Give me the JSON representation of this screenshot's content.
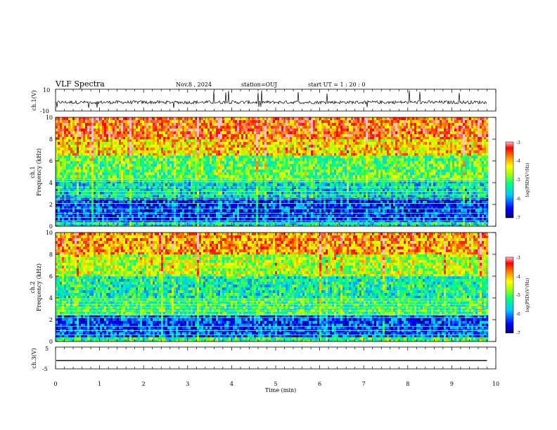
{
  "header": {
    "title": "VLF Spectra",
    "date": "Nov.8  , 2024",
    "station": "station=OUJ",
    "start": "start  UT =   1 : 20 : 0"
  },
  "chart_data": [
    {
      "type": "line",
      "panel": "ch1-waveform",
      "ylabel": "ch.1(V)",
      "ylim": [
        -10,
        10
      ],
      "yticks": [
        "10",
        "-10"
      ],
      "xlim": [
        0,
        10
      ],
      "color": "#000000",
      "description_of_series": "noisy waveform centered near -2 V with sporadic spikes to about -8 V and +8 V"
    },
    {
      "type": "heatmap",
      "panel": "ch1-spectrogram",
      "ylabel": "ch.1\nFrequency  (kHz)",
      "ylim": [
        0,
        10
      ],
      "yticks": [
        "0",
        "2",
        "4",
        "6",
        "8",
        "10"
      ],
      "xlim": [
        0,
        10
      ],
      "data_end_min": 9.8,
      "colorbar": {
        "label": "log(PSD)(V²/Hz)",
        "range": [
          -7,
          -3
        ],
        "ticks": [
          "-3",
          "-4",
          "-5",
          "-6",
          "-7"
        ],
        "colors": [
          "#000080",
          "#0000ff",
          "#00c8ff",
          "#00ff7f",
          "#aaff00",
          "#ffff00",
          "#ff8800",
          "#ff0000",
          "#ffc0cb"
        ]
      },
      "bands": [
        {
          "fmin": 0.0,
          "fmax": 0.4,
          "level": -5.5
        },
        {
          "fmin": 0.4,
          "fmax": 2.6,
          "level": -6.4
        },
        {
          "fmin": 2.6,
          "fmax": 4.2,
          "level": -5.6
        },
        {
          "fmin": 4.2,
          "fmax": 6.5,
          "level": -5.0
        },
        {
          "fmin": 6.5,
          "fmax": 8.0,
          "level": -4.2
        },
        {
          "fmin": 8.0,
          "fmax": 10.0,
          "level": -3.7
        }
      ],
      "lines_khz": [
        0.3,
        0.5,
        0.8,
        1.2,
        1.6,
        2.1,
        2.5,
        2.9,
        3.2,
        3.6,
        4.1,
        4.3
      ]
    },
    {
      "type": "heatmap",
      "panel": "ch2-spectrogram",
      "ylabel": "ch.2\nFrequency  (kHz)",
      "ylim": [
        0,
        10
      ],
      "yticks": [
        "0",
        "2",
        "4",
        "6",
        "8",
        "10"
      ],
      "xlim": [
        0,
        10
      ],
      "data_end_min": 9.8,
      "colorbar": {
        "label": "log(PSD)(V²/Hz)",
        "range": [
          -7,
          -3
        ],
        "ticks": [
          "-3",
          "-4",
          "-5",
          "-6",
          "-7"
        ],
        "colors": [
          "#000080",
          "#0000ff",
          "#00c8ff",
          "#00ff7f",
          "#aaff00",
          "#ffff00",
          "#ff8800",
          "#ff0000",
          "#ffc0cb"
        ]
      },
      "bands": [
        {
          "fmin": 0.0,
          "fmax": 0.4,
          "level": -5.2
        },
        {
          "fmin": 0.4,
          "fmax": 2.4,
          "level": -6.3
        },
        {
          "fmin": 2.4,
          "fmax": 4.0,
          "level": -5.2
        },
        {
          "fmin": 4.0,
          "fmax": 6.0,
          "level": -5.4
        },
        {
          "fmin": 6.0,
          "fmax": 8.0,
          "level": -4.6
        },
        {
          "fmin": 8.0,
          "fmax": 10.0,
          "level": -3.9
        }
      ],
      "lines_khz": [
        0.6,
        1.0,
        1.4,
        2.2,
        2.5,
        2.8,
        3.1,
        3.4,
        3.7,
        3.9
      ]
    },
    {
      "type": "line",
      "panel": "ch3-waveform",
      "ylabel": "ch.3(V)",
      "ylim": [
        -5,
        5
      ],
      "yticks": [
        "5",
        "-5"
      ],
      "xlim": [
        0,
        10
      ],
      "constant_value": -1.2,
      "color": "#000000"
    }
  ],
  "xaxis": {
    "label": "Time  (min)",
    "ticks": [
      "0",
      "1",
      "2",
      "3",
      "4",
      "5",
      "6",
      "7",
      "8",
      "9",
      "10"
    ]
  }
}
